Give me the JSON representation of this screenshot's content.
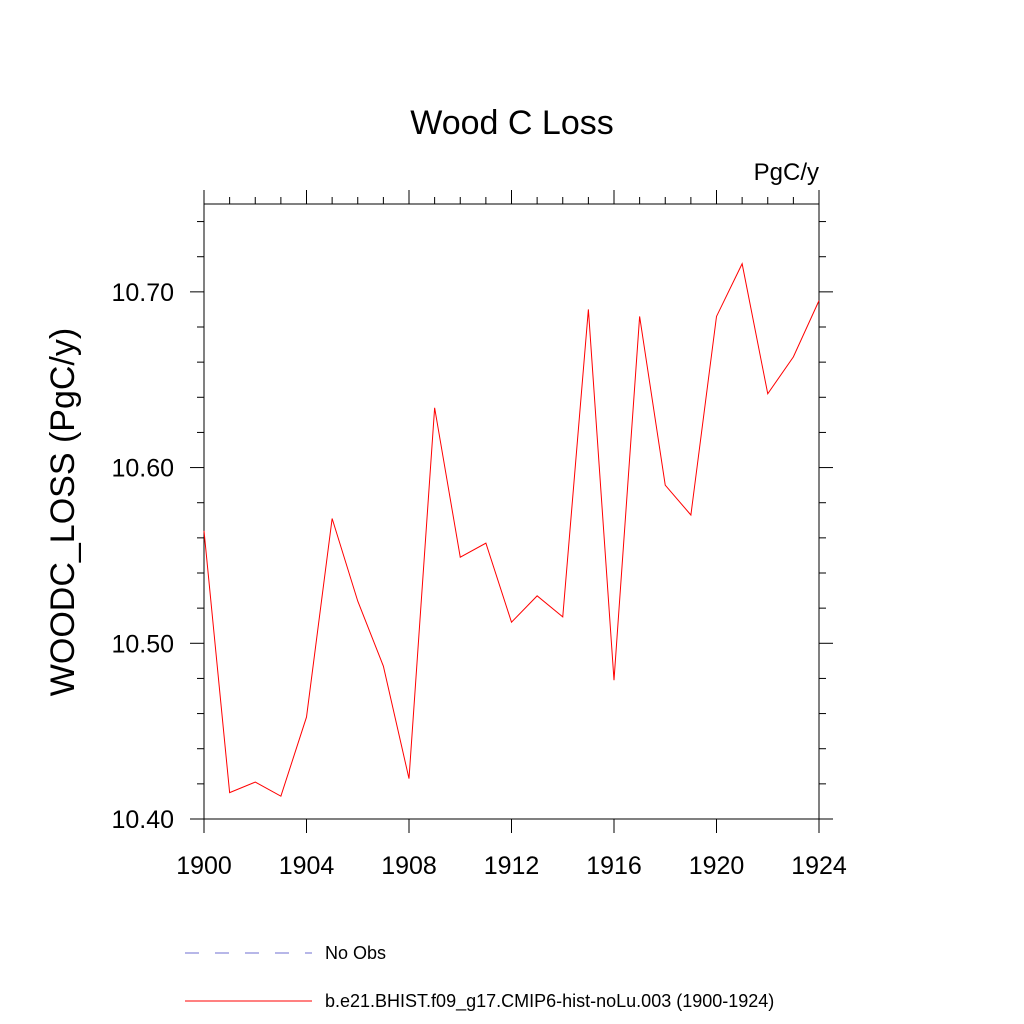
{
  "chart_data": {
    "type": "line",
    "title": "Wood C Loss",
    "units": "PgC/y",
    "ylabel": "WOODC_LOSS  (PgC/y)",
    "xlabel": "",
    "xlim": [
      1900,
      1924
    ],
    "ylim": [
      10.4,
      10.75
    ],
    "x_ticks": [
      1900,
      1904,
      1908,
      1912,
      1916,
      1920,
      1924
    ],
    "x_tick_labels": [
      "1900",
      "1904",
      "1908",
      "1912",
      "1916",
      "1920",
      "1924"
    ],
    "y_ticks": [
      10.4,
      10.5,
      10.6,
      10.7
    ],
    "y_tick_labels": [
      "10.40",
      "10.50",
      "10.60",
      "10.70"
    ],
    "grid": false,
    "legend_position": "bottom",
    "x": [
      1900,
      1901,
      1902,
      1903,
      1904,
      1905,
      1906,
      1907,
      1908,
      1909,
      1910,
      1911,
      1912,
      1913,
      1914,
      1915,
      1916,
      1917,
      1918,
      1919,
      1920,
      1921,
      1922,
      1923,
      1924
    ],
    "series": [
      {
        "name": "b.e21.BHIST.f09_g17.CMIP6-hist-noLu.003 (1900-1924)",
        "color": "#ff0000",
        "style": "solid",
        "values": [
          10.564,
          10.415,
          10.421,
          10.413,
          10.458,
          10.571,
          10.524,
          10.487,
          10.423,
          10.634,
          10.549,
          10.557,
          10.512,
          10.527,
          10.515,
          10.69,
          10.479,
          10.686,
          10.59,
          10.573,
          10.686,
          10.716,
          10.642,
          10.663,
          10.695
        ]
      }
    ],
    "legend": [
      {
        "label": "No Obs",
        "color": "#6f6fd0",
        "style": "dashed"
      },
      {
        "label": "b.e21.BHIST.f09_g17.CMIP6-hist-noLu.003 (1900-1924)",
        "color": "#ff0000",
        "style": "solid"
      }
    ]
  }
}
